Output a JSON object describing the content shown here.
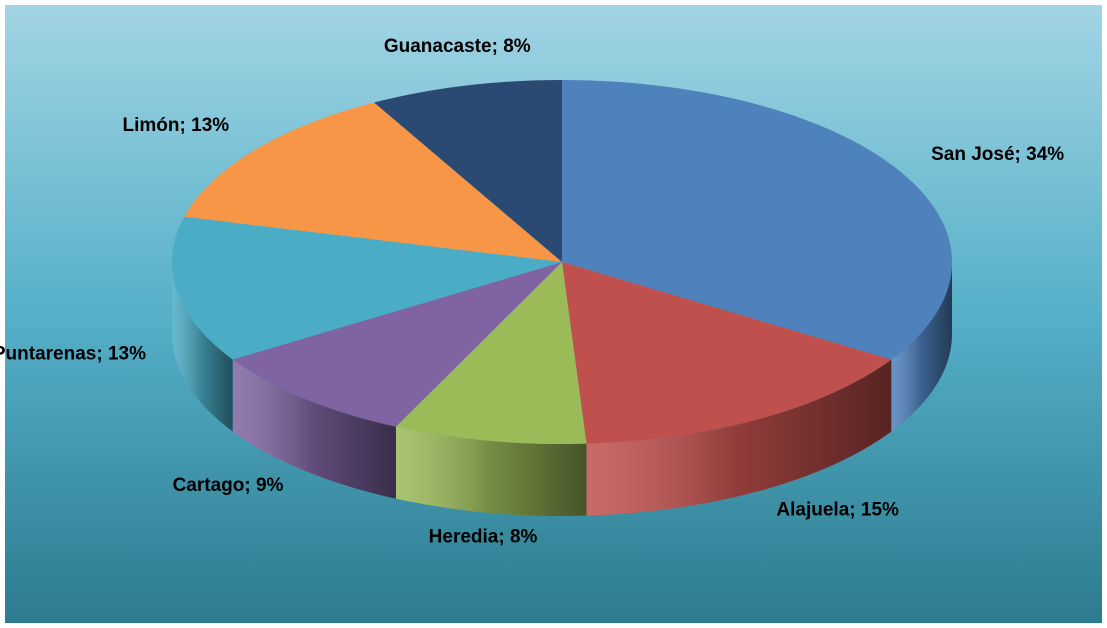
{
  "chart_data": {
    "type": "pie3d",
    "categories": [
      "San José",
      "Alajuela",
      "Heredia",
      "Cartago",
      "Puntarenas",
      "Limón",
      "Guanacaste"
    ],
    "values": [
      34,
      15,
      8,
      9,
      13,
      13,
      8
    ],
    "value_labels": [
      "34%",
      "15%",
      "8%",
      "9%",
      "13%",
      "13%",
      "8%"
    ],
    "label_separator": "; ",
    "colors": [
      "#4f81bd",
      "#c0504d",
      "#9bbb59",
      "#8064a2",
      "#4bacc6",
      "#f79646",
      "#2a4a73"
    ]
  }
}
